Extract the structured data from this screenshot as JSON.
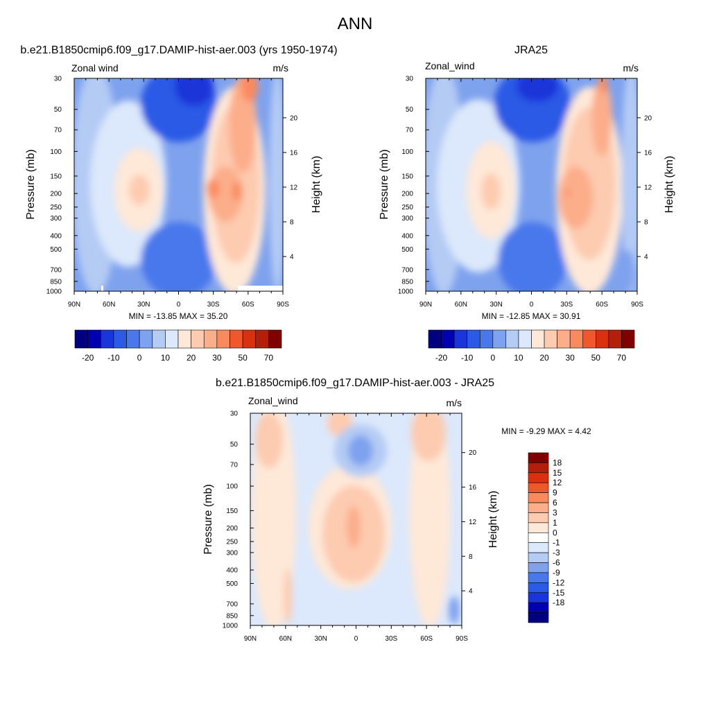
{
  "figure_title": "ANN",
  "colors": {
    "scale_top": [
      "#000080",
      "#0000b0",
      "#1a35d9",
      "#2a5ae6",
      "#4a78ec",
      "#7fa2ee",
      "#b4cbf4",
      "#dce8fb",
      "#fee8d8",
      "#fdcbb0",
      "#fcad8a",
      "#f98a5e",
      "#f0572c",
      "#d9300f",
      "#b31f0a",
      "#800000"
    ],
    "scale_diff": [
      "#000080",
      "#0000b0",
      "#1a35d9",
      "#2a5ae6",
      "#4a78ec",
      "#7fa2ee",
      "#b4cbf4",
      "#dce8fb",
      "#ffffff",
      "#fee8d8",
      "#fdcbb0",
      "#fcad8a",
      "#f98a5e",
      "#f0572c",
      "#d9300f",
      "#b31f0a",
      "#800000"
    ]
  },
  "chart_data": [
    {
      "type": "heatmap",
      "title": "b.e21.B1850cmip6.f09_g17.DAMIP-hist-aer.003 (yrs 1950-1974)",
      "left_label": "Zonal wind",
      "right_label": "m/s",
      "ylabel": "Pressure (mb)",
      "ylabel_right": "Height (km)",
      "x_ticks": [
        "90N",
        "60N",
        "30N",
        "0",
        "30S",
        "60S",
        "90S"
      ],
      "y_ticks": [
        30,
        50,
        70,
        100,
        150,
        200,
        250,
        300,
        400,
        500,
        700,
        850,
        1000
      ],
      "y_right_ticks": [
        4,
        8,
        12,
        16,
        20
      ],
      "y_log": true,
      "ylim": [
        1000,
        30
      ],
      "min": -13.85,
      "max": 35.2,
      "min_label": "MIN = -13.85  MAX =  35.20",
      "colorbar_labels": [
        "-20",
        "-10",
        "0",
        "10",
        "20",
        "30",
        "50",
        "70"
      ],
      "features": [
        {
          "lat": -55,
          "p": 30,
          "peak": 30
        },
        {
          "lat": -29,
          "p": 200,
          "peak": 32
        },
        {
          "lat": -50,
          "p": 200,
          "peak": 31
        },
        {
          "lat": 33,
          "p": 200,
          "peak": 24
        },
        {
          "lat": 12,
          "p": 30,
          "peak": -13.85
        }
      ]
    },
    {
      "type": "heatmap",
      "title": "JRA25",
      "left_label": "Zonal_wind",
      "right_label": "m/s",
      "ylabel": "Pressure (mb)",
      "ylabel_right": "Height (km)",
      "x_ticks": [
        "90N",
        "60N",
        "30N",
        "0",
        "30S",
        "60S",
        "90S"
      ],
      "y_ticks": [
        30,
        50,
        70,
        100,
        150,
        200,
        250,
        300,
        400,
        500,
        700,
        850,
        1000
      ],
      "y_right_ticks": [
        4,
        8,
        12,
        16,
        20
      ],
      "y_log": true,
      "ylim": [
        1000,
        30
      ],
      "min": -12.85,
      "max": 30.91,
      "min_label": "MIN = -12.85  MAX =  30.91",
      "colorbar_labels": [
        "-20",
        "-10",
        "0",
        "10",
        "20",
        "30",
        "50",
        "70"
      ],
      "features": [
        {
          "lat": -62,
          "p": 30,
          "peak": 28
        },
        {
          "lat": -35,
          "p": 200,
          "peak": 30.9
        },
        {
          "lat": 33,
          "p": 200,
          "peak": 22
        },
        {
          "lat": 10,
          "p": 30,
          "peak": -12.85
        }
      ]
    },
    {
      "type": "heatmap",
      "title": "b.e21.B1850cmip6.f09_g17.DAMIP-hist-aer.003 - JRA25",
      "left_label": "Zonal_wind",
      "right_label": "m/s",
      "ylabel": "Pressure (mb)",
      "ylabel_right": "Height (km)",
      "x_ticks": [
        "90N",
        "60N",
        "30N",
        "0",
        "30S",
        "60S",
        "90S"
      ],
      "y_ticks": [
        30,
        50,
        70,
        100,
        150,
        200,
        250,
        300,
        400,
        500,
        700,
        850,
        1000
      ],
      "y_right_ticks": [
        4,
        8,
        12,
        16,
        20
      ],
      "y_log": true,
      "ylim": [
        1000,
        30
      ],
      "min": -9.29,
      "max": 4.42,
      "min_label": "MIN =  -9.29  MAX =   4.42",
      "colorbar_labels": [
        "18",
        "15",
        "12",
        "9",
        "6",
        "3",
        "1",
        "0",
        "-1",
        "-3",
        "-6",
        "-9",
        "-12",
        "-15",
        "-18"
      ],
      "features": [
        {
          "lat": 0,
          "p": 200,
          "peak": 4.4
        },
        {
          "lat": -68,
          "p": 40,
          "peak": 4.0
        },
        {
          "lat": 72,
          "p": 40,
          "peak": 4.0
        },
        {
          "lat": 0,
          "p": 60,
          "peak": -9.29
        },
        {
          "lat": 20,
          "p": 300,
          "peak": -2
        }
      ]
    }
  ]
}
